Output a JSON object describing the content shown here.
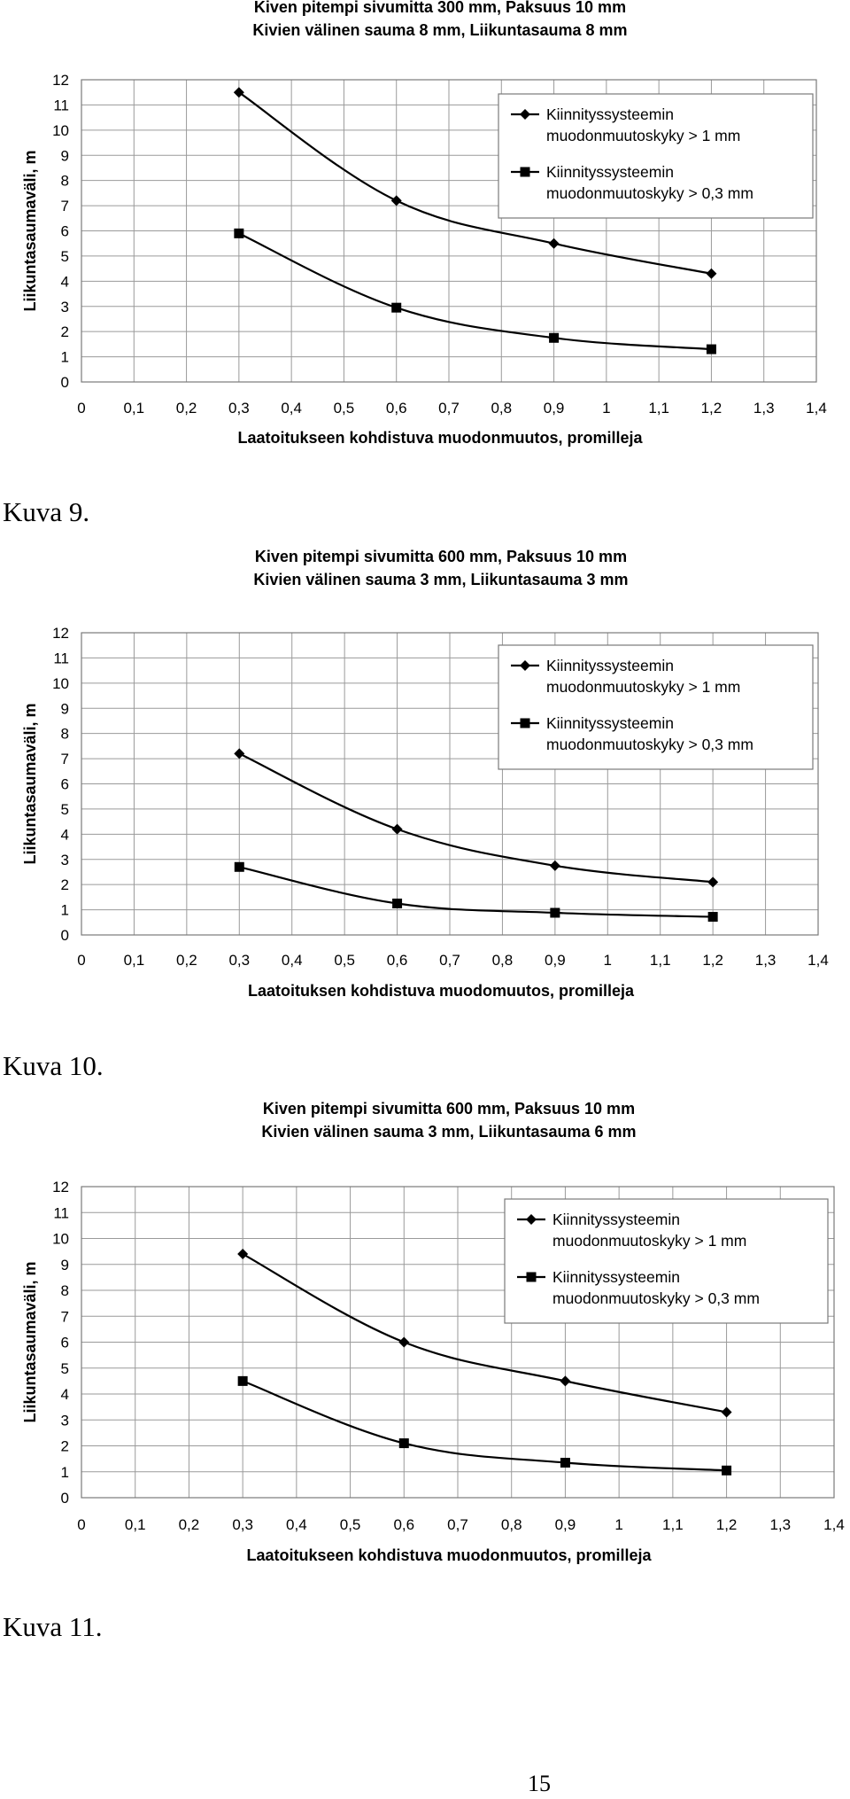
{
  "captions": [
    "Kuva 9.",
    "Kuva 10.",
    "Kuva 11."
  ],
  "page_number": "15",
  "chart_data": [
    {
      "type": "line",
      "title_lines": [
        "Kiven pitempi sivumitta 300 mm, Paksuus 10 mm",
        "Kivien välinen sauma 8 mm, Liikuntasauma 8 mm"
      ],
      "xlabel": "Laatoitukseen kohdistuva muodonmuutos, promilleja",
      "ylabel": "Liikuntasaumaväli, m",
      "xlim": [
        0,
        1.4
      ],
      "ylim": [
        0,
        12
      ],
      "x_ticks": [
        "0",
        "0,1",
        "0,2",
        "0,3",
        "0,4",
        "0,5",
        "0,6",
        "0,7",
        "0,8",
        "0,9",
        "1",
        "1,1",
        "1,2",
        "1,3",
        "1,4"
      ],
      "y_ticks": [
        "0",
        "1",
        "2",
        "3",
        "4",
        "5",
        "6",
        "7",
        "8",
        "9",
        "10",
        "11",
        "12"
      ],
      "grid": true,
      "legend_position": "top-right",
      "series": [
        {
          "name": "Kiinnityssysteemin muodonmuutoskyky > 1 mm",
          "legend_lines": [
            "Kiinnityssysteemin",
            "muodonmuutoskyky > 1 mm"
          ],
          "marker": "diamond",
          "x": [
            0.3,
            0.6,
            0.9,
            1.2
          ],
          "y": [
            11.5,
            7.2,
            5.5,
            4.3
          ]
        },
        {
          "name": "Kiinnityssysteemin muodonmuutoskyky > 0,3 mm",
          "legend_lines": [
            "Kiinnityssysteemin",
            "muodonmuutoskyky > 0,3 mm"
          ],
          "marker": "square",
          "x": [
            0.3,
            0.6,
            0.9,
            1.2
          ],
          "y": [
            5.9,
            2.95,
            1.75,
            1.3
          ]
        }
      ]
    },
    {
      "type": "line",
      "title_lines": [
        "Kiven pitempi sivumitta 600 mm, Paksuus 10 mm",
        "Kivien välinen sauma 3 mm, Liikuntasauma 3 mm"
      ],
      "xlabel": "Laatoituksen kohdistuva muodomuutos, promilleja",
      "ylabel": "Liikuntasaumaväli, m",
      "xlim": [
        0,
        1.4
      ],
      "ylim": [
        0,
        12
      ],
      "x_ticks": [
        "0",
        "0,1",
        "0,2",
        "0,3",
        "0,4",
        "0,5",
        "0,6",
        "0,7",
        "0,8",
        "0,9",
        "1",
        "1,1",
        "1,2",
        "1,3",
        "1,4"
      ],
      "y_ticks": [
        "0",
        "1",
        "2",
        "3",
        "4",
        "5",
        "6",
        "7",
        "8",
        "9",
        "10",
        "11",
        "12"
      ],
      "grid": true,
      "legend_position": "top-right",
      "series": [
        {
          "name": "Kiinnityssysteemin muodonmuutoskyky > 1 mm",
          "legend_lines": [
            "Kiinnityssysteemin",
            "muodonmuutoskyky > 1 mm"
          ],
          "marker": "diamond",
          "x": [
            0.3,
            0.6,
            0.9,
            1.2
          ],
          "y": [
            7.2,
            4.2,
            2.75,
            2.1
          ]
        },
        {
          "name": "Kiinnityssysteemin muodonmuutoskyky > 0,3 mm",
          "legend_lines": [
            "Kiinnityssysteemin",
            "muodonmuutoskyky > 0,3 mm"
          ],
          "marker": "square",
          "x": [
            0.3,
            0.6,
            0.9,
            1.2
          ],
          "y": [
            2.7,
            1.25,
            0.88,
            0.72
          ]
        }
      ]
    },
    {
      "type": "line",
      "title_lines": [
        "Kiven pitempi sivumitta 600 mm, Paksuus 10 mm",
        "Kivien välinen sauma 3 mm, Liikuntasauma 6 mm"
      ],
      "xlabel": "Laatoitukseen kohdistuva muodonmuutos, promilleja",
      "ylabel": "Liikuntasaumaväli, m",
      "xlim": [
        0,
        1.4
      ],
      "ylim": [
        0,
        12
      ],
      "x_ticks": [
        "0",
        "0,1",
        "0,2",
        "0,3",
        "0,4",
        "0,5",
        "0,6",
        "0,7",
        "0,8",
        "0,9",
        "1",
        "1,1",
        "1,2",
        "1,3",
        "1,4"
      ],
      "y_ticks": [
        "0",
        "1",
        "2",
        "3",
        "4",
        "5",
        "6",
        "7",
        "8",
        "9",
        "10",
        "11",
        "12"
      ],
      "grid": true,
      "legend_position": "top-right",
      "series": [
        {
          "name": "Kiinnityssysteemin muodonmuutoskyky > 1 mm",
          "legend_lines": [
            "Kiinnityssysteemin",
            "muodonmuutoskyky > 1 mm"
          ],
          "marker": "diamond",
          "x": [
            0.3,
            0.6,
            0.9,
            1.2
          ],
          "y": [
            9.4,
            6.0,
            4.5,
            3.3
          ]
        },
        {
          "name": "Kiinnityssysteemin muodonmuutoskyky > 0,3 mm",
          "legend_lines": [
            "Kiinnityssysteemin",
            "muodonmuutoskyky > 0,3 mm"
          ],
          "marker": "square",
          "x": [
            0.3,
            0.6,
            0.9,
            1.2
          ],
          "y": [
            4.5,
            2.1,
            1.35,
            1.05
          ]
        }
      ]
    }
  ]
}
